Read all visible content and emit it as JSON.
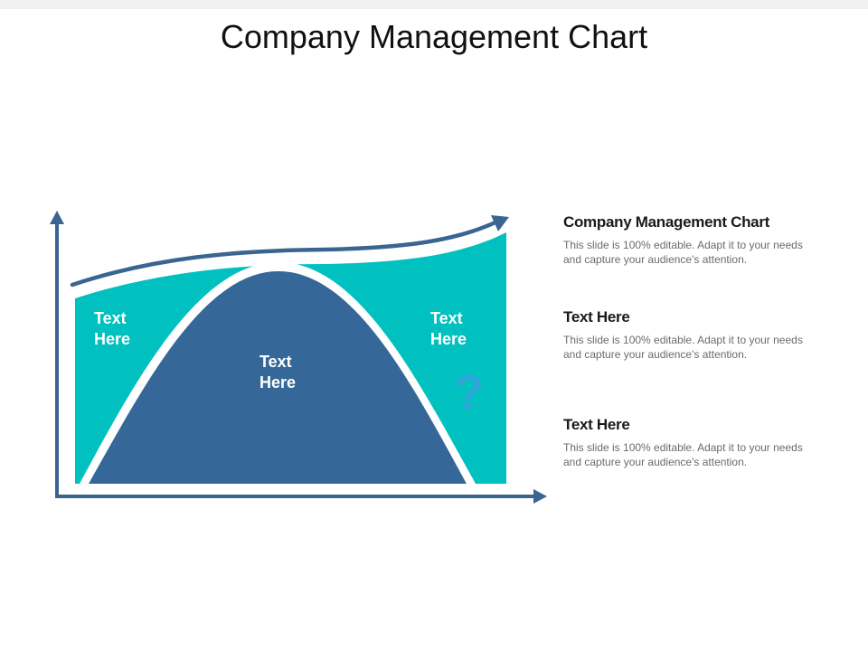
{
  "title": "Company Management Chart",
  "colors": {
    "teal": "#00c1bf",
    "navy": "#356898",
    "axis": "#3a6590",
    "question_mark": "#2fa6d9"
  },
  "diagram": {
    "left_label": [
      "Text",
      "Here"
    ],
    "center_label": [
      "Text",
      "Here"
    ],
    "right_label": [
      "Text",
      "Here"
    ],
    "question_mark": "?"
  },
  "side_items": [
    {
      "heading": "Company Management Chart",
      "body": "This slide is 100% editable. Adapt it to your needs and capture your audience's attention."
    },
    {
      "heading": "Text Here",
      "body": "This slide is 100% editable. Adapt it to your needs and capture your audience's attention."
    },
    {
      "heading": "Text Here",
      "body": "This slide is 100% editable. Adapt it to your needs and capture your audience's attention."
    }
  ]
}
